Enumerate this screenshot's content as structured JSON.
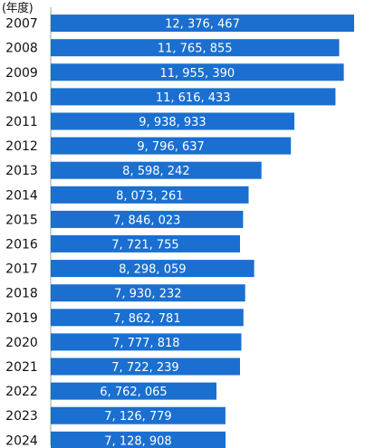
{
  "chart_data": {
    "type": "bar",
    "orientation": "horizontal",
    "title": "",
    "unit_label": "(年度)",
    "xlabel": "",
    "ylabel": "",
    "categories": [
      "2007",
      "2008",
      "2009",
      "2010",
      "2011",
      "2012",
      "2013",
      "2014",
      "2015",
      "2016",
      "2017",
      "2018",
      "2019",
      "2020",
      "2021",
      "2022",
      "2023",
      "2024"
    ],
    "values": [
      12376467,
      11765855,
      11955390,
      11616433,
      9938933,
      9796637,
      8598242,
      8073261,
      7846023,
      7721755,
      8298059,
      7930232,
      7862781,
      7777818,
      7722239,
      6762065,
      7126779,
      7128908
    ],
    "value_labels": [
      "12, 376, 467",
      "11, 765, 855",
      "11, 955, 390",
      "11, 616, 433",
      "9, 938, 933",
      "9, 796, 637",
      "8, 598, 242",
      "8, 073, 261",
      "7, 846, 023",
      "7, 721, 755",
      "8, 298, 059",
      "7, 930, 232",
      "7, 862, 781",
      "7, 777, 818",
      "7, 722, 239",
      "6, 762, 065",
      "7, 126, 779",
      "7, 128, 908"
    ],
    "xlim": [
      0,
      12376467
    ],
    "grid": false,
    "legend": "none",
    "colors": {
      "bar": "#1a6fd0",
      "label": "#ffffff",
      "axis": "#9aa3ad",
      "text": "#111111"
    }
  }
}
